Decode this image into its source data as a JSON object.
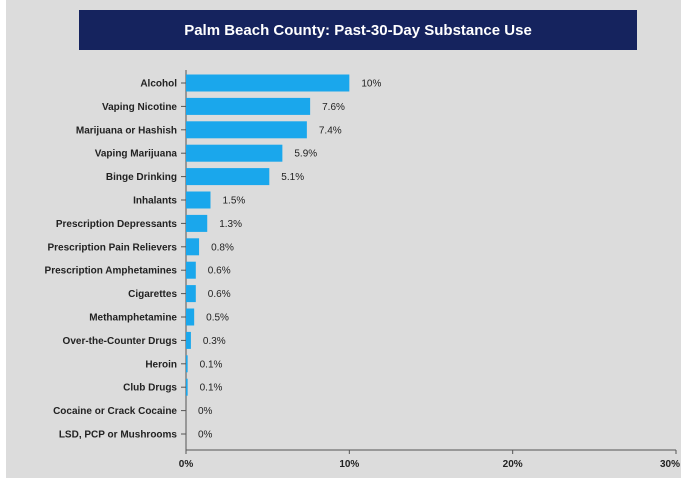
{
  "chart_data": {
    "type": "bar",
    "orientation": "horizontal",
    "title": "Palm Beach County: Past-30-Day Substance Use",
    "categories": [
      "Alcohol",
      "Vaping Nicotine",
      "Marijuana or Hashish",
      "Vaping Marijuana",
      "Binge Drinking",
      "Inhalants",
      "Prescription Depressants",
      "Prescription Pain Relievers",
      "Prescription Amphetamines",
      "Cigarettes",
      "Methamphetamine",
      "Over-the-Counter Drugs",
      "Heroin",
      "Club Drugs",
      "Cocaine or Crack Cocaine",
      "LSD, PCP or Mushrooms"
    ],
    "values": [
      10,
      7.6,
      7.4,
      5.9,
      5.1,
      1.5,
      1.3,
      0.8,
      0.6,
      0.6,
      0.5,
      0.3,
      0.1,
      0.1,
      0,
      0
    ],
    "value_labels": [
      "10%",
      "7.6%",
      "7.4%",
      "5.9%",
      "5.1%",
      "1.5%",
      "1.3%",
      "0.8%",
      "0.6%",
      "0.6%",
      "0.5%",
      "0.3%",
      "0.1%",
      "0.1%",
      "0%",
      "0%"
    ],
    "xlim": [
      0,
      30
    ],
    "xticks": [
      0,
      10,
      20,
      30
    ],
    "xtick_labels": [
      "0%",
      "10%",
      "20%",
      "30%"
    ],
    "grid": false,
    "colors": {
      "bar": "#1aa7ec",
      "title_bg": "#15235e",
      "title_text": "#ffffff",
      "background": "#dcdcdc",
      "axis": "#555555"
    }
  }
}
